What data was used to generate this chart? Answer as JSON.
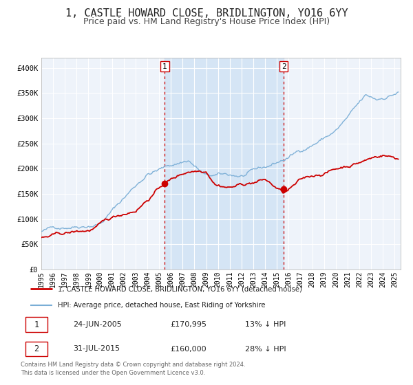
{
  "title": "1, CASTLE HOWARD CLOSE, BRIDLINGTON, YO16 6YY",
  "subtitle": "Price paid vs. HM Land Registry's House Price Index (HPI)",
  "title_fontsize": 11,
  "subtitle_fontsize": 9,
  "background_color": "#ffffff",
  "plot_bg_color": "#eef3fa",
  "grid_color": "#ffffff",
  "red_line_color": "#cc0000",
  "blue_line_color": "#7aaed6",
  "shaded_region_color": "#d5e5f5",
  "sale1_date_num": 2005.48,
  "sale1_price": 170995,
  "sale1_label": "1",
  "sale1_hpi_diff": "13% ↓ HPI",
  "sale1_date_str": "24-JUN-2005",
  "sale2_date_num": 2015.58,
  "sale2_price": 160000,
  "sale2_label": "2",
  "sale2_hpi_diff": "28% ↓ HPI",
  "sale2_date_str": "31-JUL-2015",
  "ylim": [
    0,
    420000
  ],
  "xlim_start": 1995.0,
  "xlim_end": 2025.5,
  "yticks": [
    0,
    50000,
    100000,
    150000,
    200000,
    250000,
    300000,
    350000,
    400000
  ],
  "ytick_labels": [
    "£0",
    "£50K",
    "£100K",
    "£150K",
    "£200K",
    "£250K",
    "£300K",
    "£350K",
    "£400K"
  ],
  "legend_red_label": "1, CASTLE HOWARD CLOSE, BRIDLINGTON, YO16 6YY (detached house)",
  "legend_blue_label": "HPI: Average price, detached house, East Riding of Yorkshire",
  "footer1": "Contains HM Land Registry data © Crown copyright and database right 2024.",
  "footer2": "This data is licensed under the Open Government Licence v3.0."
}
